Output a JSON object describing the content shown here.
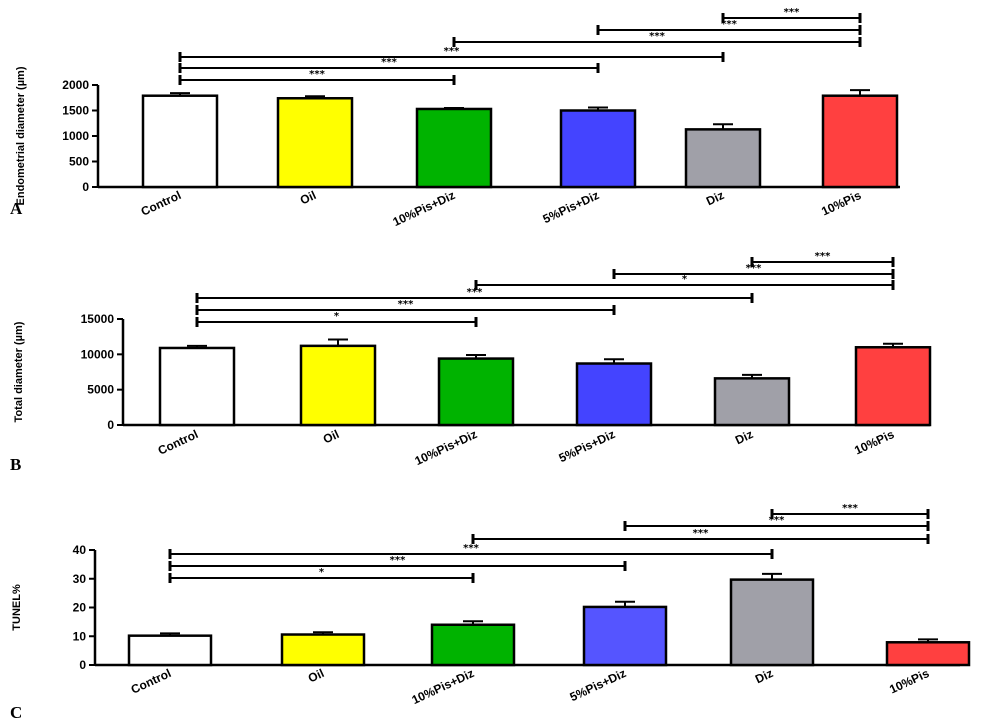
{
  "chart_data": [
    {
      "type": "bar",
      "panel": "A",
      "ylabel": "Endometrial diameter (µm)",
      "ylim": [
        0,
        2000
      ],
      "yticks": [
        0,
        500,
        1000,
        1500,
        2000
      ],
      "categories": [
        "Control",
        "Oil",
        "10%Pis+Diz",
        "5%Pis+Diz",
        "Diz",
        "10%Pis"
      ],
      "values": [
        1790,
        1740,
        1530,
        1500,
        1130,
        1790
      ],
      "errors": [
        50,
        40,
        20,
        60,
        100,
        110
      ],
      "colors": [
        "#ffffff",
        "#ffff00",
        "#00b300",
        "#4444ff",
        "#a0a0a8",
        "#ff4040"
      ],
      "comparisons": [
        {
          "from": 0,
          "to": 2,
          "stars": "***"
        },
        {
          "from": 0,
          "to": 3,
          "stars": "***"
        },
        {
          "from": 0,
          "to": 4,
          "stars": "***"
        },
        {
          "from": 2,
          "to": 5,
          "stars": "***"
        },
        {
          "from": 3,
          "to": 5,
          "stars": "***"
        },
        {
          "from": 4,
          "to": 5,
          "stars": "***"
        }
      ]
    },
    {
      "type": "bar",
      "panel": "B",
      "ylabel": "Total diameter (µm)",
      "ylim": [
        0,
        15000
      ],
      "yticks": [
        0,
        5000,
        10000,
        15000
      ],
      "categories": [
        "Control",
        "Oil",
        "10%Pis+Diz",
        "5%Pis+Diz",
        "Diz",
        "10%Pis"
      ],
      "values": [
        10900,
        11200,
        9400,
        8700,
        6600,
        11000
      ],
      "errors": [
        300,
        900,
        500,
        600,
        500,
        500
      ],
      "colors": [
        "#ffffff",
        "#ffff00",
        "#00b300",
        "#4444ff",
        "#a0a0a8",
        "#ff4040"
      ],
      "comparisons": [
        {
          "from": 0,
          "to": 2,
          "stars": "*"
        },
        {
          "from": 0,
          "to": 3,
          "stars": "***"
        },
        {
          "from": 0,
          "to": 4,
          "stars": "***"
        },
        {
          "from": 2,
          "to": 5,
          "stars": "*"
        },
        {
          "from": 3,
          "to": 5,
          "stars": "***"
        },
        {
          "from": 4,
          "to": 5,
          "stars": "***"
        }
      ]
    },
    {
      "type": "bar",
      "panel": "C",
      "ylabel": "TUNEL%",
      "ylim": [
        0,
        40
      ],
      "yticks": [
        0,
        10,
        20,
        30,
        40
      ],
      "categories": [
        "Control",
        "Oil",
        "10%Pis+Diz",
        "5%Pis+Diz",
        "Diz",
        "10%Pis"
      ],
      "values": [
        10.2,
        10.6,
        14.0,
        20.2,
        29.7,
        7.9
      ],
      "errors": [
        0.8,
        0.8,
        1.2,
        1.8,
        2.0,
        1.0
      ],
      "colors": [
        "#ffffff",
        "#ffff00",
        "#00b300",
        "#5555ff",
        "#a0a0a8",
        "#ff4040"
      ],
      "comparisons": [
        {
          "from": 0,
          "to": 2,
          "stars": "*"
        },
        {
          "from": 0,
          "to": 3,
          "stars": "***"
        },
        {
          "from": 0,
          "to": 4,
          "stars": "***"
        },
        {
          "from": 2,
          "to": 5,
          "stars": "***"
        },
        {
          "from": 3,
          "to": 5,
          "stars": "***"
        },
        {
          "from": 4,
          "to": 5,
          "stars": "***"
        }
      ]
    }
  ]
}
